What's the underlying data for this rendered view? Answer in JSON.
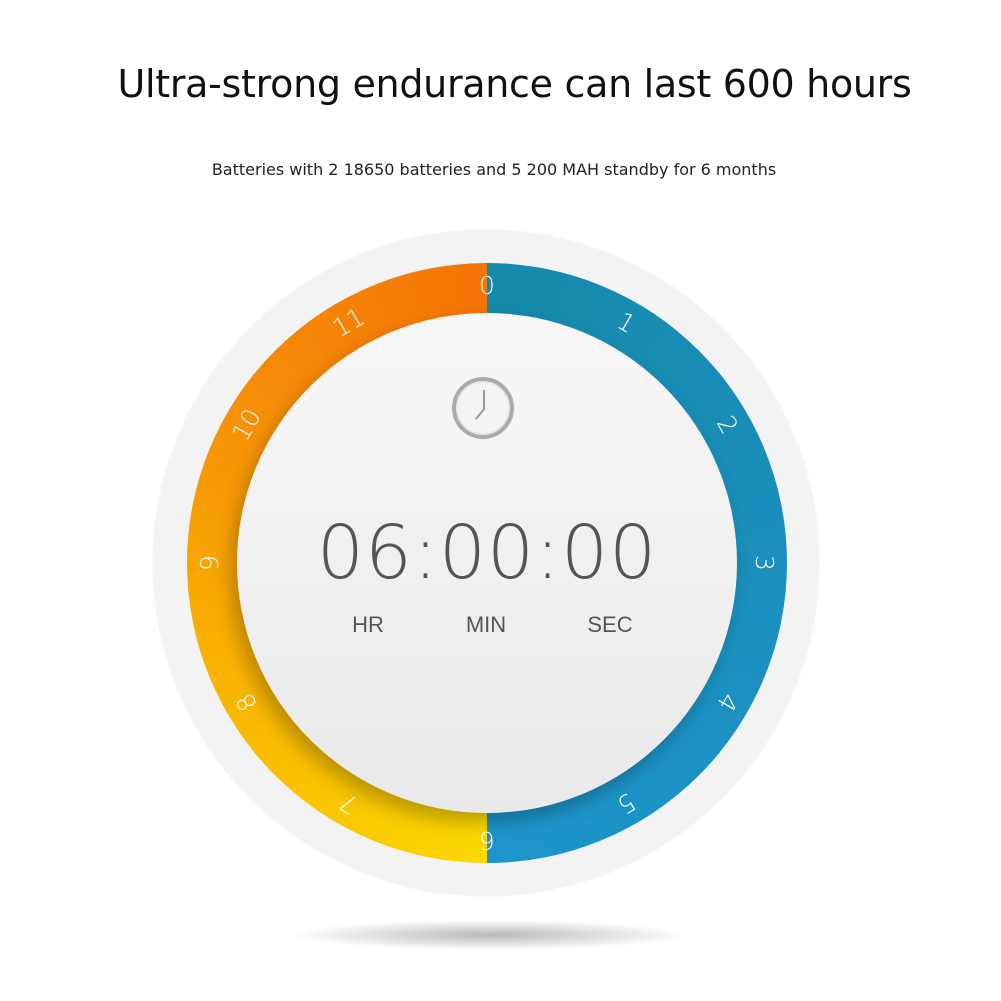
{
  "title": "Ultra-strong endurance can last 600 hours",
  "subtitle": "Batteries with 2 18650 batteries and 5 200 MAH standby for 6 months",
  "timer": {
    "display": "06:00:00",
    "units": [
      "HR",
      "MIN",
      "SEC"
    ],
    "dial_numbers": [
      "0",
      "1",
      "2",
      "3",
      "4",
      "5",
      "6",
      "7",
      "8",
      "9",
      "10",
      "11"
    ],
    "icon": "clock-icon",
    "colors": {
      "right_half": "#1a8fbc",
      "left_top": "#f57406",
      "left_bottom": "#fbd800"
    }
  }
}
